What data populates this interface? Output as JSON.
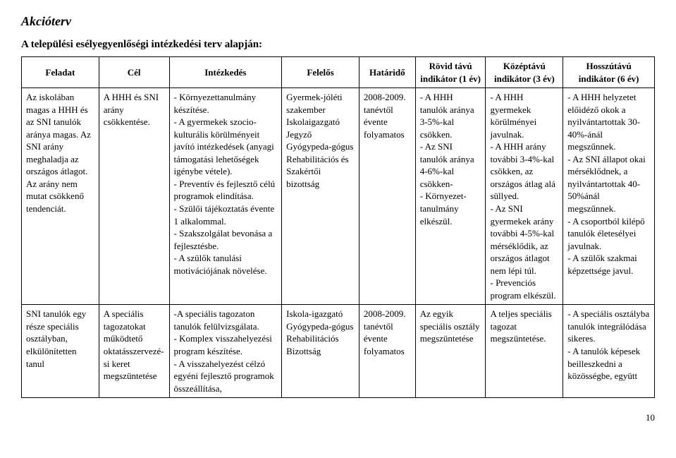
{
  "title": "Akcióterv",
  "subtitle": "A települési esélyegyenlőségi intézkedési terv alapján:",
  "columns": {
    "feladat": "Feladat",
    "cel": "Cél",
    "intezkedes": "Intézkedés",
    "felelos": "Felelős",
    "hatarido": "Határidő",
    "ind1": "Rövid távú indikátor (1 év)",
    "ind3": "Középtávú indikátor (3 év)",
    "ind6": "Hosszútávú indikátor (6 év)"
  },
  "rows": [
    {
      "feladat": "Az iskolában magas a HHH és az SNI tanulók aránya magas. Az SNI arány meghaladja az országos átlagot. Az arány nem mutat csökkenő tendenciát.",
      "cel": "A HHH és SNI arány csökkentése.",
      "intezkedes": "- Környezettanulmány készítése.\n- A gyermekek szocio-kulturális körülményeit javító intézkedések (anyagi támogatási lehetőségek igénybe vétele).\n- Preventív és fejlesztő célú programok elindítása.\n- Szülői tájékoztatás évente 1 alkalommal.\n- Szakszolgálat bevonása a fejlesztésbe.\n- A szülők tanulási motivációjának növelése.",
      "felelos": "Gyermek-jóléti szakember\nIskolaigazgató\nJegyző\nGyógypeda-gógus\nRehabilitációs és Szakértői bizottság",
      "hatarido": "2008-2009. tanévtől évente folyamatos",
      "ind1": "- A HHH tanulók aránya 3-5%-kal csökken.\n- Az SNI tanulók aránya 4-6%-kal csökken-\n- Környezet-tanulmány elkészül.",
      "ind3": "- A HHH gyermekek körülményei javulnak.\n- A HHH arány további 3-4%-kal csökken, az országos átlag alá süllyed.\n- Az SNI gyermekek arány további 4-5%-kal mérséklődik, az országos átlagot nem lépi túl.\n- Prevenciós program elkészül.",
      "ind6": "- A HHH helyzetet előidéző okok a nyilvántartottak 30-40%-ánál megszűnnek.\n- Az SNI állapot okai mérséklődnek, a nyilvántartottak 40-50%ánál megszűnnek.\n- A csoportból kilépő tanulók életesélyei javulnak.\n- A szülők szakmai képzettsége javul."
    },
    {
      "feladat": "SNI tanulók egy része speciális osztályban, elkülönítetten tanul",
      "cel": "A speciális tagozatokat működtető oktatásszervezé-si keret megszüntetése",
      "intezkedes": "-A speciális tagozaton tanulók felülvizsgálata.\n- Komplex visszahelyezési program készítése.\n- A visszahelyezést célzó egyéni fejlesztő programok összeállítása,",
      "felelos": "Iskola-igazgató\nGyógypeda-gógus\nRehabilitációs Bizottság",
      "hatarido": "2008-2009. tanévtől évente folyamatos",
      "ind1": "Az egyik speciális osztály megszüntetése",
      "ind3": "A teljes speciális tagozat megszüntetése.",
      "ind6": "- A speciális osztályba tanulók integrálódása sikeres.\n- A tanulók képesek beilleszkedni a közösségbe, együtt"
    }
  ],
  "page_number": "10"
}
